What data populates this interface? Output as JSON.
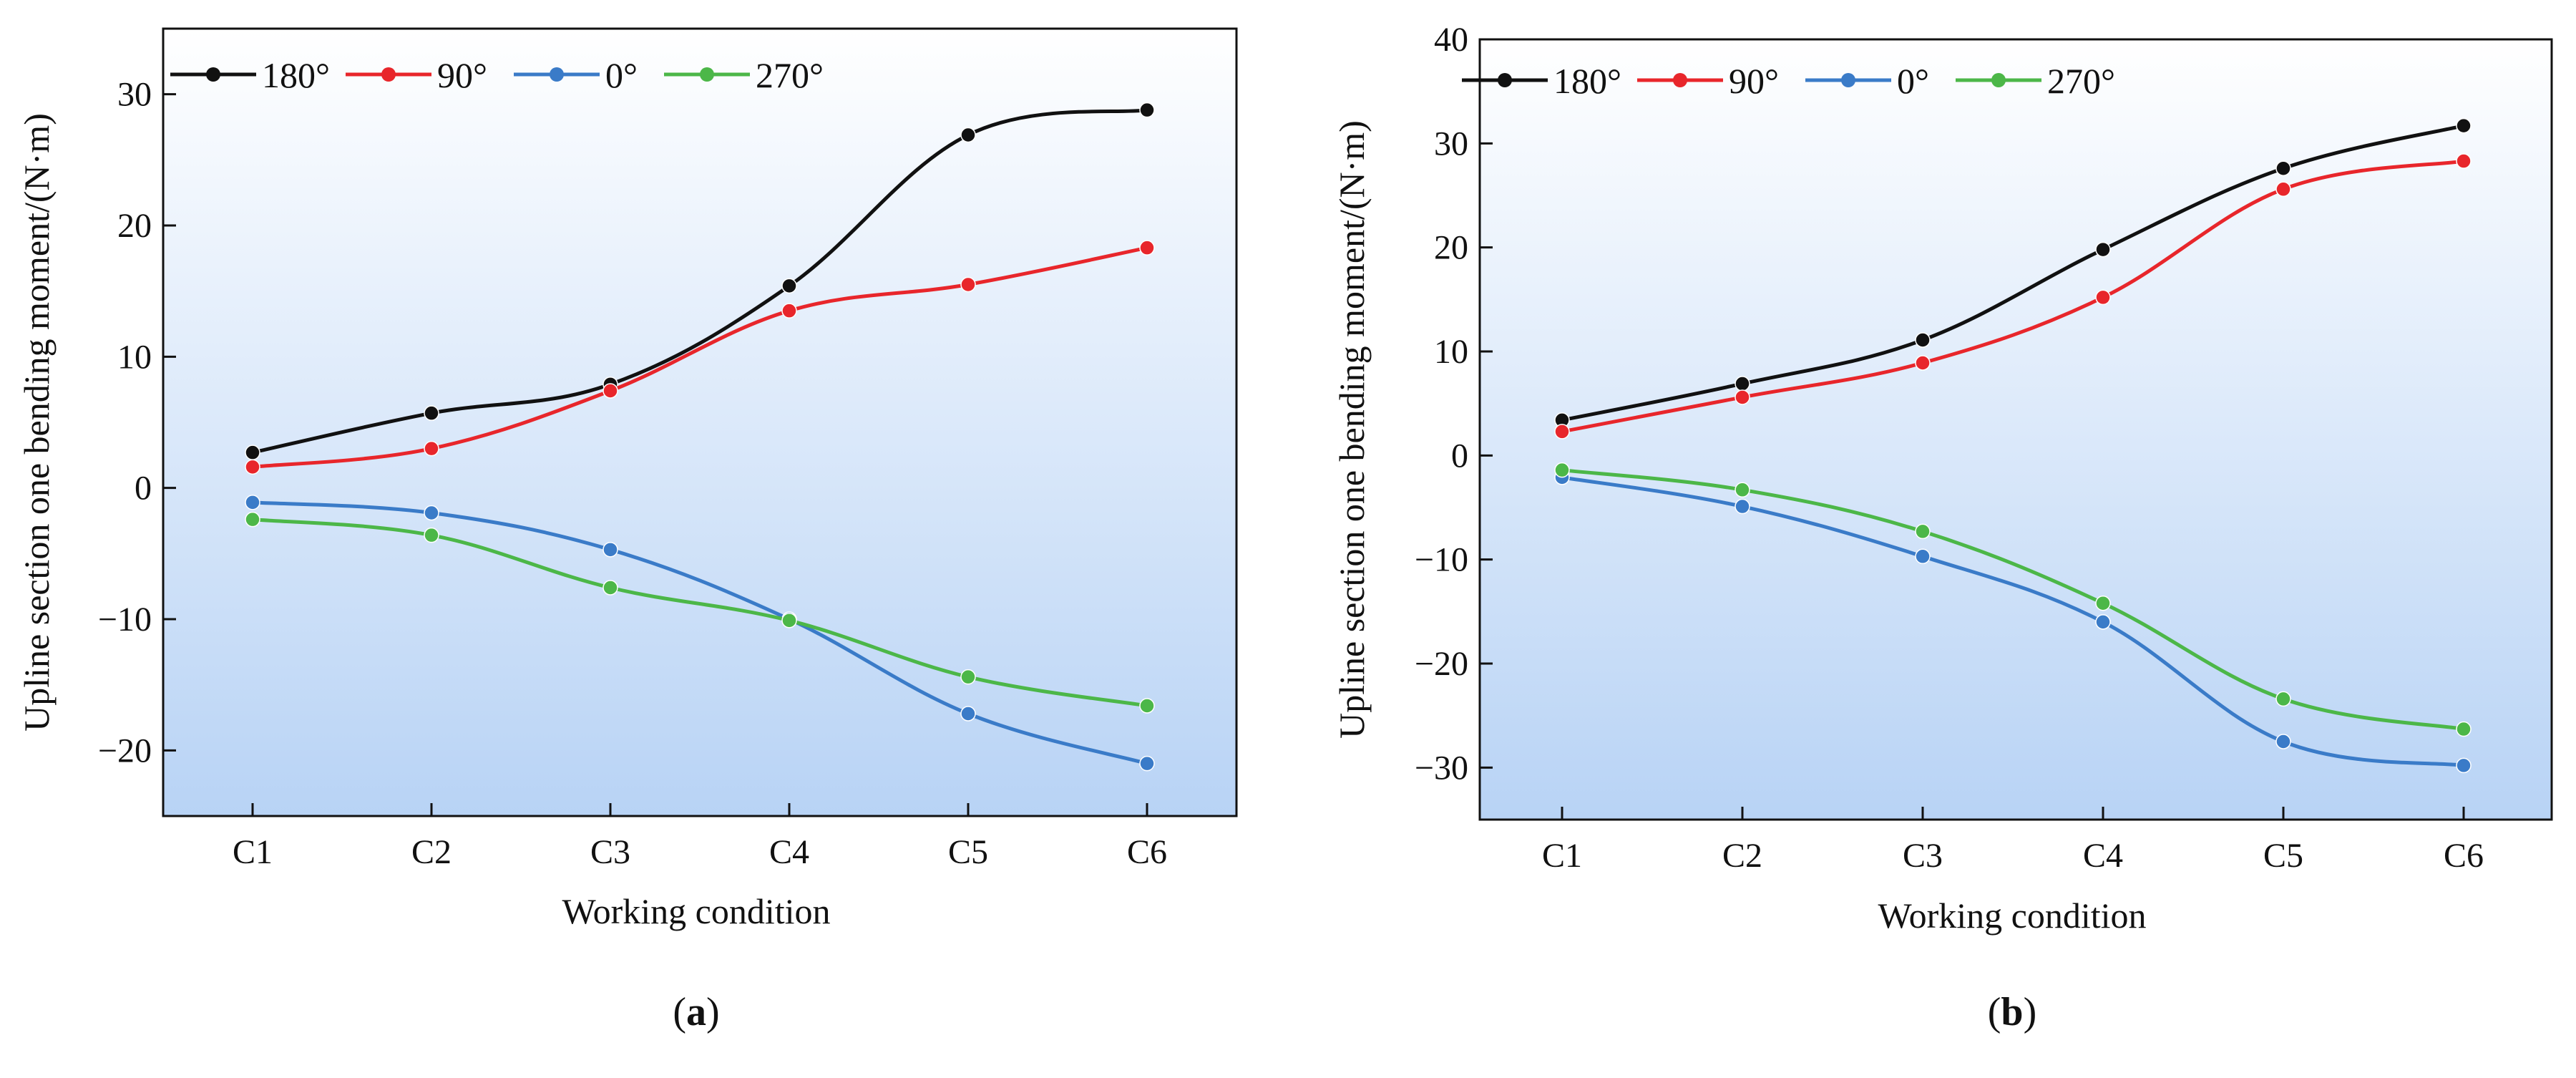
{
  "chart_data": [
    {
      "panel_id": "a",
      "panel_label": "a",
      "type": "line",
      "xlabel": "Working condition",
      "ylabel": "Upline section one bending moment/(N·m)",
      "categories": [
        "C1",
        "C2",
        "C3",
        "C4",
        "C5",
        "C6"
      ],
      "ylim": [
        -25,
        35
      ],
      "yticks": [
        -20,
        -10,
        0,
        10,
        20,
        30
      ],
      "ytick_labels": [
        "−20",
        "−10",
        "0",
        "10",
        "20",
        "30"
      ],
      "legend_position": "top-left",
      "series": [
        {
          "name": "180°",
          "color": "#111111",
          "values": [
            2.7,
            5.7,
            7.9,
            15.4,
            26.9,
            28.8
          ]
        },
        {
          "name": "90°",
          "color": "#e8262b",
          "values": [
            1.6,
            3.0,
            7.4,
            13.5,
            15.5,
            18.3
          ]
        },
        {
          "name": "0°",
          "color": "#3a7bc8",
          "values": [
            -1.1,
            -1.9,
            -4.7,
            -10.0,
            -17.2,
            -21.0
          ]
        },
        {
          "name": "270°",
          "color": "#4cb748",
          "values": [
            -2.4,
            -3.6,
            -7.6,
            -10.1,
            -14.4,
            -16.6
          ]
        }
      ]
    },
    {
      "panel_id": "b",
      "panel_label": "b",
      "type": "line",
      "xlabel": "Working condition",
      "ylabel": "Upline section one bending moment/(N·m)",
      "categories": [
        "C1",
        "C2",
        "C3",
        "C4",
        "C5",
        "C6"
      ],
      "ylim": [
        -35,
        40
      ],
      "yticks": [
        -30,
        -20,
        -10,
        0,
        10,
        20,
        30,
        40
      ],
      "ytick_labels": [
        "−30",
        "−20",
        "−10",
        "0",
        "10",
        "20",
        "30",
        "40"
      ],
      "legend_position": "top-left",
      "series": [
        {
          "name": "180°",
          "color": "#111111",
          "values": [
            3.4,
            6.9,
            11.1,
            19.8,
            27.6,
            31.7
          ]
        },
        {
          "name": "90°",
          "color": "#e8262b",
          "values": [
            2.3,
            5.6,
            8.9,
            15.2,
            25.6,
            28.3
          ]
        },
        {
          "name": "0°",
          "color": "#3a7bc8",
          "values": [
            -2.1,
            -4.9,
            -9.7,
            -16.0,
            -27.5,
            -29.8
          ]
        },
        {
          "name": "270°",
          "color": "#4cb748",
          "values": [
            -1.4,
            -3.3,
            -7.3,
            -14.2,
            -23.4,
            -26.3
          ]
        }
      ]
    }
  ]
}
